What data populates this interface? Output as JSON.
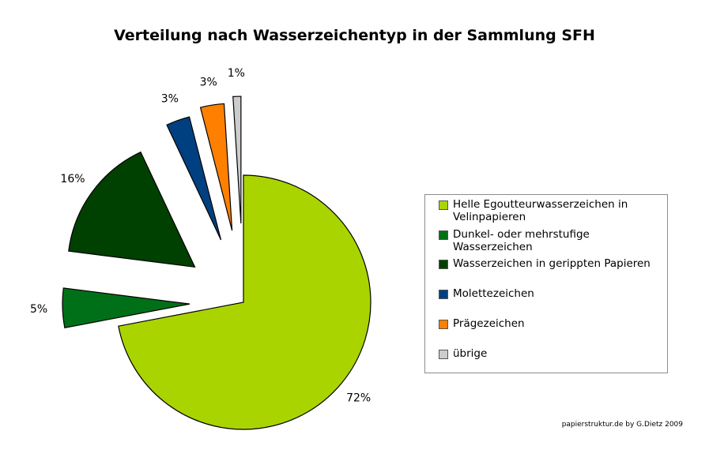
{
  "chart_data": {
    "type": "pie",
    "title": "Verteilung nach Wasserzeichentyp in der Sammlung SFH",
    "slices": [
      {
        "label": "Helle Egoutteurwasserzeichen in Velinpapieren",
        "value": 72,
        "value_label": "72%",
        "color": "#aad400"
      },
      {
        "label": "Dunkel- oder mehrstufige Wasserzeichen",
        "value": 5,
        "value_label": "5%",
        "color": "#007018"
      },
      {
        "label": "Wasserzeichen in gerippten Papieren",
        "value": 16,
        "value_label": "16%",
        "color": "#004000"
      },
      {
        "label": "Molettezeichen",
        "value": 3,
        "value_label": "3%",
        "color": "#004080"
      },
      {
        "label": "Prägezeichen",
        "value": 3,
        "value_label": "3%",
        "color": "#ff8000"
      },
      {
        "label": "übrige",
        "value": 1,
        "value_label": "1%",
        "color": "#cccccc"
      }
    ],
    "start_angle_deg": 0,
    "direction": "clockwise",
    "exploded": true,
    "legend_position": "right"
  },
  "credit": "papierstruktur.de by G.Dietz 2009"
}
